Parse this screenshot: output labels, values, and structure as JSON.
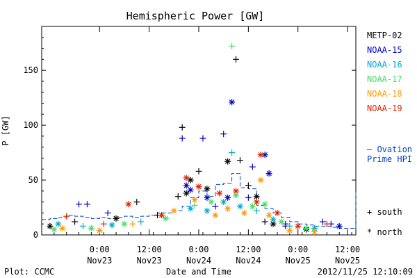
{
  "chart_data": {
    "type": "scatter",
    "title": "Hemispheric Power [GW]",
    "xlabel": "Date and Time",
    "ylabel": "P [GW]",
    "x_range_hours": [
      -14,
      62
    ],
    "ylim": [
      0,
      190
    ],
    "y_ticks": [
      0,
      50,
      100,
      150
    ],
    "x_ticks": [
      {
        "h": 0,
        "time": "0:00",
        "date": "Nov23"
      },
      {
        "h": 12,
        "time": "12:00",
        "date": "Nov23"
      },
      {
        "h": 24,
        "time": "0:00",
        "date": "Nov24"
      },
      {
        "h": 36,
        "time": "12:00",
        "date": "Nov24"
      },
      {
        "h": 48,
        "time": "0:00",
        "date": "Nov25"
      },
      {
        "h": 60,
        "time": "12:00",
        "date": "Nov25"
      }
    ],
    "grid": false,
    "legend": {
      "position": "right",
      "entries": [
        "METP-02",
        "NOAA-15",
        "NOAA-16",
        "NOAA-17",
        "NOAA-18",
        "NOAA-19"
      ]
    },
    "marker_legend": [
      {
        "symbol": "+",
        "label": "south"
      },
      {
        "symbol": "*",
        "label": "north"
      }
    ],
    "series": [
      {
        "name": "METP-02",
        "color": "#000000",
        "values": [
          {
            "h": 9,
            "v": 30,
            "m": "+"
          },
          {
            "h": 19,
            "v": 35,
            "m": "+"
          },
          {
            "h": 20,
            "v": 98,
            "m": "+"
          },
          {
            "h": 21,
            "v": 38,
            "m": "*"
          },
          {
            "h": 22,
            "v": 50,
            "m": "*"
          },
          {
            "h": 24,
            "v": 58,
            "m": "+"
          },
          {
            "h": 26,
            "v": 42,
            "m": "*"
          },
          {
            "h": 31,
            "v": 67,
            "m": "*"
          },
          {
            "h": 33,
            "v": 160,
            "m": "+"
          },
          {
            "h": 34,
            "v": 68,
            "m": "+"
          },
          {
            "h": 36,
            "v": 45,
            "m": "+"
          },
          {
            "h": 38,
            "v": 35,
            "m": "*"
          },
          {
            "h": 40,
            "v": 12,
            "m": "+"
          },
          {
            "h": 42,
            "v": 10,
            "m": "*"
          },
          {
            "h": 45,
            "v": 8,
            "m": "+"
          },
          {
            "h": 50,
            "v": 5,
            "m": "*"
          },
          {
            "h": -12,
            "v": 8,
            "m": "*"
          },
          {
            "h": -6,
            "v": 12,
            "m": "+"
          },
          {
            "h": 4,
            "v": 15,
            "m": "*"
          },
          {
            "h": 14,
            "v": 18,
            "m": "+"
          }
        ]
      },
      {
        "name": "NOAA-15",
        "color": "#0000cc",
        "values": [
          {
            "h": -5,
            "v": 28,
            "m": "+"
          },
          {
            "h": -3,
            "v": 28,
            "m": "+"
          },
          {
            "h": 2,
            "v": 20,
            "m": "+"
          },
          {
            "h": 20,
            "v": 88,
            "m": "+"
          },
          {
            "h": 21,
            "v": 45,
            "m": "*"
          },
          {
            "h": 22,
            "v": 41,
            "m": "*"
          },
          {
            "h": 25,
            "v": 88,
            "m": "+"
          },
          {
            "h": 26,
            "v": 34,
            "m": "*"
          },
          {
            "h": 28,
            "v": 26,
            "m": "+"
          },
          {
            "h": 30,
            "v": 92,
            "m": "+"
          },
          {
            "h": 31,
            "v": 34,
            "m": "*"
          },
          {
            "h": 32,
            "v": 121,
            "m": "*"
          },
          {
            "h": 36,
            "v": 34,
            "m": "+"
          },
          {
            "h": 37,
            "v": 62,
            "m": "+"
          },
          {
            "h": 40,
            "v": 73,
            "m": "*"
          },
          {
            "h": 41,
            "v": 56,
            "m": "*"
          },
          {
            "h": 45,
            "v": 10,
            "m": "+"
          },
          {
            "h": 54,
            "v": 12,
            "m": "+"
          },
          {
            "h": 56,
            "v": 10,
            "m": "+"
          },
          {
            "h": 58,
            "v": 8,
            "m": "*"
          }
        ]
      },
      {
        "name": "NOAA-16",
        "color": "#00aacc",
        "values": [
          {
            "h": -10,
            "v": 10,
            "m": "*"
          },
          {
            "h": -4,
            "v": 8,
            "m": "+"
          },
          {
            "h": 3,
            "v": 9,
            "m": "*"
          },
          {
            "h": 10,
            "v": 12,
            "m": "+"
          },
          {
            "h": 22,
            "v": 24,
            "m": "*"
          },
          {
            "h": 26,
            "v": 22,
            "m": "*"
          },
          {
            "h": 30,
            "v": 30,
            "m": "*"
          },
          {
            "h": 32,
            "v": 75,
            "m": "+"
          },
          {
            "h": 34,
            "v": 26,
            "m": "*"
          },
          {
            "h": 38,
            "v": 22,
            "m": "+"
          },
          {
            "h": 42,
            "v": 14,
            "m": "*"
          },
          {
            "h": 46,
            "v": 8,
            "m": "+"
          },
          {
            "h": 52,
            "v": 6,
            "m": "*"
          }
        ]
      },
      {
        "name": "NOAA-17",
        "color": "#44dd66",
        "values": [
          {
            "h": -11,
            "v": 5,
            "m": "*"
          },
          {
            "h": -2,
            "v": 6,
            "m": "*"
          },
          {
            "h": 6,
            "v": 10,
            "m": "*"
          },
          {
            "h": 16,
            "v": 15,
            "m": "*"
          },
          {
            "h": 23,
            "v": 27,
            "m": "+"
          },
          {
            "h": 27,
            "v": 30,
            "m": "*"
          },
          {
            "h": 32,
            "v": 172,
            "m": "+"
          },
          {
            "h": 33,
            "v": 36,
            "m": "*"
          },
          {
            "h": 37,
            "v": 26,
            "m": "*"
          },
          {
            "h": 40,
            "v": 28,
            "m": "*"
          },
          {
            "h": 44,
            "v": 12,
            "m": "*"
          },
          {
            "h": 50,
            "v": 6,
            "m": "*"
          }
        ]
      },
      {
        "name": "NOAA-18",
        "color": "#ff9900",
        "values": [
          {
            "h": -9,
            "v": 6,
            "m": "*"
          },
          {
            "h": 0,
            "v": 4,
            "m": "*"
          },
          {
            "h": 8,
            "v": 10,
            "m": "+"
          },
          {
            "h": 18,
            "v": 22,
            "m": "*"
          },
          {
            "h": 23,
            "v": 32,
            "m": "*"
          },
          {
            "h": 28,
            "v": 18,
            "m": "*"
          },
          {
            "h": 31,
            "v": 24,
            "m": "*"
          },
          {
            "h": 35,
            "v": 20,
            "m": "*"
          },
          {
            "h": 39,
            "v": 50,
            "m": "*"
          },
          {
            "h": 41,
            "v": 18,
            "m": "*"
          },
          {
            "h": 46,
            "v": 4,
            "m": "*"
          },
          {
            "h": 52,
            "v": 3,
            "m": "*"
          }
        ]
      },
      {
        "name": "NOAA-19",
        "color": "#dd2200",
        "values": [
          {
            "h": -8,
            "v": 17,
            "m": "+"
          },
          {
            "h": 1,
            "v": 10,
            "m": "+"
          },
          {
            "h": 7,
            "v": 28,
            "m": "*"
          },
          {
            "h": 15,
            "v": 18,
            "m": "*"
          },
          {
            "h": 21,
            "v": 52,
            "m": "*"
          },
          {
            "h": 24,
            "v": 44,
            "m": "*"
          },
          {
            "h": 29,
            "v": 38,
            "m": "*"
          },
          {
            "h": 33,
            "v": 40,
            "m": "*"
          },
          {
            "h": 38,
            "v": 30,
            "m": "*"
          },
          {
            "h": 39,
            "v": 73,
            "m": "*"
          },
          {
            "h": 43,
            "v": 20,
            "m": "*"
          },
          {
            "h": 48,
            "v": 8,
            "m": "*"
          },
          {
            "h": 55,
            "v": 10,
            "m": "+"
          }
        ]
      }
    ],
    "ovation": {
      "label_line1": "– Ovation",
      "label_line2": "Prime HPI",
      "color": "#0044cc",
      "values": [
        {
          "h": -14,
          "v": 14
        },
        {
          "h": -12,
          "v": 15
        },
        {
          "h": -10,
          "v": 16
        },
        {
          "h": -8,
          "v": 18
        },
        {
          "h": -6,
          "v": 17
        },
        {
          "h": -4,
          "v": 16
        },
        {
          "h": -2,
          "v": 15
        },
        {
          "h": 0,
          "v": 16
        },
        {
          "h": 2,
          "v": 15
        },
        {
          "h": 4,
          "v": 16
        },
        {
          "h": 6,
          "v": 17
        },
        {
          "h": 8,
          "v": 16
        },
        {
          "h": 10,
          "v": 17
        },
        {
          "h": 12,
          "v": 18
        },
        {
          "h": 14,
          "v": 20
        },
        {
          "h": 16,
          "v": 20
        },
        {
          "h": 18,
          "v": 22
        },
        {
          "h": 20,
          "v": 26
        },
        {
          "h": 22,
          "v": 34
        },
        {
          "h": 24,
          "v": 40
        },
        {
          "h": 26,
          "v": 35
        },
        {
          "h": 28,
          "v": 46
        },
        {
          "h": 30,
          "v": 47
        },
        {
          "h": 32,
          "v": 56
        },
        {
          "h": 34,
          "v": 43
        },
        {
          "h": 36,
          "v": 42
        },
        {
          "h": 38,
          "v": 27
        },
        {
          "h": 40,
          "v": 24
        },
        {
          "h": 42,
          "v": 20
        },
        {
          "h": 44,
          "v": 16
        },
        {
          "h": 46,
          "v": 12
        },
        {
          "h": 48,
          "v": 10
        },
        {
          "h": 50,
          "v": 9
        },
        {
          "h": 52,
          "v": 8
        },
        {
          "h": 54,
          "v": 8
        },
        {
          "h": 56,
          "v": 7
        },
        {
          "h": 58,
          "v": 6
        },
        {
          "h": 60,
          "v": 6
        },
        {
          "h": 62,
          "v": 40
        }
      ]
    }
  },
  "footer": {
    "left": "Plot: CCMC",
    "center": "Date and Time",
    "right": "2012/11/25 12:10:09"
  }
}
